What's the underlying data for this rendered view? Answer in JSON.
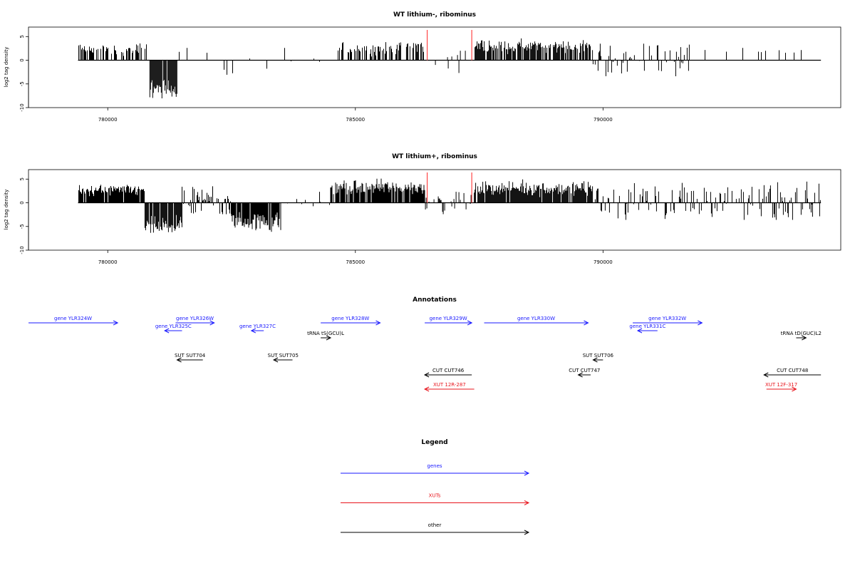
{
  "colors": {
    "gene": "#1a1aff",
    "xut": "#e8141c",
    "other": "#000000",
    "marker": "#ff4444"
  },
  "chart_data": [
    {
      "type": "bar",
      "title": "WT lithium-, ribominus",
      "ylabel": "log2 tag density",
      "ylim": [
        -10,
        7
      ],
      "yticks": [
        {
          "v": 5,
          "label": "5"
        },
        {
          "v": 0,
          "label": "0"
        },
        {
          "v": -5,
          "label": "-5"
        },
        {
          "v": -10,
          "label": "-10"
        }
      ],
      "xlim": [
        778400,
        794800
      ],
      "xticks": [
        {
          "v": 780000,
          "label": "780000"
        },
        {
          "v": 785000,
          "label": "785000"
        },
        {
          "v": 790000,
          "label": "790000"
        }
      ],
      "baseline_range": [
        779400,
        794400
      ],
      "markers": [
        786450,
        787350
      ],
      "segments": [
        {
          "from": 779400,
          "to": 780800,
          "mode": "pos",
          "density": 0.5,
          "mean": 2.2,
          "spread": 1.2,
          "max": 4.6
        },
        {
          "from": 780850,
          "to": 781400,
          "mode": "neg",
          "density": 0.95,
          "mean": -6.0,
          "spread": 2.0,
          "min": -9.2
        },
        {
          "from": 781400,
          "to": 784600,
          "mode": "mix",
          "density": 0.07,
          "mean": 0,
          "spread": 2.0,
          "max": 2.6,
          "min": -4.2
        },
        {
          "from": 784650,
          "to": 785800,
          "mode": "pos",
          "density": 0.45,
          "mean": 2.4,
          "spread": 1.3,
          "max": 5.0
        },
        {
          "from": 785800,
          "to": 786400,
          "mode": "pos",
          "density": 0.55,
          "mean": 3.0,
          "spread": 1.5,
          "max": 5.2
        },
        {
          "from": 786400,
          "to": 787400,
          "mode": "mix",
          "density": 0.12,
          "mean": -1.0,
          "spread": 1.6,
          "max": 2.0,
          "min": -4.0
        },
        {
          "from": 787400,
          "to": 789800,
          "mode": "pos",
          "density": 0.8,
          "mean": 3.0,
          "spread": 1.4,
          "max": 6.4
        },
        {
          "from": 789800,
          "to": 791800,
          "mode": "mix",
          "density": 0.3,
          "mean": 1.5,
          "spread": 1.6,
          "max": 3.5,
          "min": -3.6
        },
        {
          "from": 791800,
          "to": 794400,
          "mode": "pos",
          "density": 0.06,
          "mean": 2.0,
          "spread": 0.6,
          "max": 2.6,
          "min": -2.8
        }
      ]
    },
    {
      "type": "bar",
      "title": "WT lithium+, ribominus",
      "ylabel": "log2 tag density",
      "ylim": [
        -10,
        7
      ],
      "yticks": [
        {
          "v": 5,
          "label": "5"
        },
        {
          "v": 0,
          "label": "0"
        },
        {
          "v": -5,
          "label": "-5"
        },
        {
          "v": -10,
          "label": "-10"
        }
      ],
      "xlim": [
        778400,
        794800
      ],
      "xticks": [
        {
          "v": 780000,
          "label": "780000"
        },
        {
          "v": 785000,
          "label": "785000"
        },
        {
          "v": 790000,
          "label": "790000"
        }
      ],
      "baseline_range": [
        779400,
        794400
      ],
      "markers": [
        786450,
        787350
      ],
      "segments": [
        {
          "from": 779400,
          "to": 780750,
          "mode": "pos",
          "density": 0.9,
          "mean": 2.6,
          "spread": 1.2,
          "max": 5.6
        },
        {
          "from": 780750,
          "to": 781500,
          "mode": "neg",
          "density": 0.95,
          "mean": -5.0,
          "spread": 2.0,
          "min": -8.8
        },
        {
          "from": 781500,
          "to": 782500,
          "mode": "mix",
          "density": 0.6,
          "mean": 0,
          "spread": 2.6,
          "max": 4.6,
          "min": -2.4
        },
        {
          "from": 782500,
          "to": 783500,
          "mode": "neg",
          "density": 0.9,
          "mean": -4.0,
          "spread": 2.0,
          "min": -8.8
        },
        {
          "from": 783500,
          "to": 784500,
          "mode": "mix",
          "density": 0.15,
          "mean": 0.5,
          "spread": 1.6,
          "max": 2.6,
          "min": -2.0
        },
        {
          "from": 784500,
          "to": 786400,
          "mode": "pos",
          "density": 0.9,
          "mean": 3.2,
          "spread": 1.6,
          "max": 6.4
        },
        {
          "from": 786400,
          "to": 787400,
          "mode": "mix",
          "density": 0.3,
          "mean": 0.5,
          "spread": 1.6,
          "max": 2.6,
          "min": -2.4
        },
        {
          "from": 787400,
          "to": 789800,
          "mode": "pos",
          "density": 0.9,
          "mean": 3.0,
          "spread": 1.5,
          "max": 6.2
        },
        {
          "from": 789800,
          "to": 794400,
          "mode": "mix",
          "density": 0.35,
          "mean": 2.0,
          "spread": 1.4,
          "max": 4.6,
          "min": -3.6
        }
      ]
    }
  ],
  "annotations": {
    "title": "Annotations",
    "features": [
      {
        "label": "gene YLR324W",
        "start": 778400,
        "end": 780200,
        "strand": "+",
        "row": 0,
        "kind": "gene"
      },
      {
        "label": "gene YLR325C",
        "start": 781500,
        "end": 781150,
        "strand": "-",
        "row": 1,
        "kind": "gene"
      },
      {
        "label": "gene YLR326W",
        "start": 781370,
        "end": 782150,
        "strand": "+",
        "row": 0,
        "kind": "gene"
      },
      {
        "label": "gene YLR327C",
        "start": 783150,
        "end": 782900,
        "strand": "-",
        "row": 1,
        "kind": "gene"
      },
      {
        "label": "tRNA tS(GCU)L",
        "start": 784300,
        "end": 784500,
        "strand": "+",
        "row": 2,
        "kind": "other"
      },
      {
        "label": "gene YLR328W",
        "start": 784300,
        "end": 785500,
        "strand": "+",
        "row": 0,
        "kind": "gene"
      },
      {
        "label": "gene YLR329W",
        "start": 786400,
        "end": 787350,
        "strand": "+",
        "row": 0,
        "kind": "gene"
      },
      {
        "label": "gene YLR330W",
        "start": 787600,
        "end": 789700,
        "strand": "+",
        "row": 0,
        "kind": "gene"
      },
      {
        "label": "gene YLR332W",
        "start": 790600,
        "end": 792000,
        "strand": "+",
        "row": 0,
        "kind": "gene"
      },
      {
        "label": "gene YLR331C",
        "start": 791100,
        "end": 790700,
        "strand": "-",
        "row": 1,
        "kind": "gene"
      },
      {
        "label": "tRNA tD(GUC)L2",
        "start": 793900,
        "end": 794100,
        "strand": "+",
        "row": 2,
        "kind": "other"
      },
      {
        "label": "SUT SUT704",
        "start": 781920,
        "end": 781400,
        "strand": "-",
        "row": 3,
        "kind": "other"
      },
      {
        "label": "SUT SUT705",
        "start": 783730,
        "end": 783350,
        "strand": "-",
        "row": 3,
        "kind": "other"
      },
      {
        "label": "SUT SUT706",
        "start": 790000,
        "end": 789800,
        "strand": "-",
        "row": 3,
        "kind": "other"
      },
      {
        "label": "CUT CUT746",
        "start": 787350,
        "end": 786400,
        "strand": "-",
        "row": 4,
        "kind": "other"
      },
      {
        "label": "CUT CUT747",
        "start": 789750,
        "end": 789500,
        "strand": "-",
        "row": 4,
        "kind": "other"
      },
      {
        "label": "CUT CUT748",
        "start": 794400,
        "end": 793250,
        "strand": "-",
        "row": 4,
        "kind": "other"
      },
      {
        "label": "XUT 12R-287",
        "start": 787400,
        "end": 786400,
        "strand": "-",
        "row": 5,
        "kind": "xut"
      },
      {
        "label": "XUT 12F-317",
        "start": 793300,
        "end": 793900,
        "strand": "+",
        "row": 5,
        "kind": "xut"
      }
    ]
  },
  "legend": {
    "title": "Legend",
    "items": [
      {
        "label": "genes",
        "kind": "gene"
      },
      {
        "label": "XUTs",
        "kind": "xut"
      },
      {
        "label": "other",
        "kind": "other"
      }
    ]
  }
}
